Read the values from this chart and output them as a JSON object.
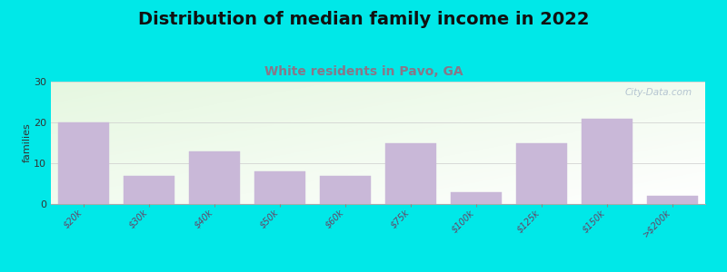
{
  "title": "Distribution of median family income in 2022",
  "subtitle": "White residents in Pavo, GA",
  "ylabel": "families",
  "categories": [
    "$20k",
    "$30k",
    "$40k",
    "$50k",
    "$60k",
    "$75k",
    "$100k",
    "$125k",
    "$150k",
    ">$200k"
  ],
  "values": [
    20,
    7,
    13,
    8,
    7,
    15,
    3,
    15,
    21,
    2
  ],
  "bar_color": "#c9b8d8",
  "bar_edge_color": "#c9b8d8",
  "background_outer": "#00e8e8",
  "title_fontsize": 14,
  "subtitle_fontsize": 10,
  "subtitle_color": "#887788",
  "ylabel_fontsize": 8,
  "tick_label_fontsize": 7,
  "ylim": [
    0,
    30
  ],
  "yticks": [
    0,
    10,
    20,
    30
  ],
  "watermark": "City-Data.com"
}
